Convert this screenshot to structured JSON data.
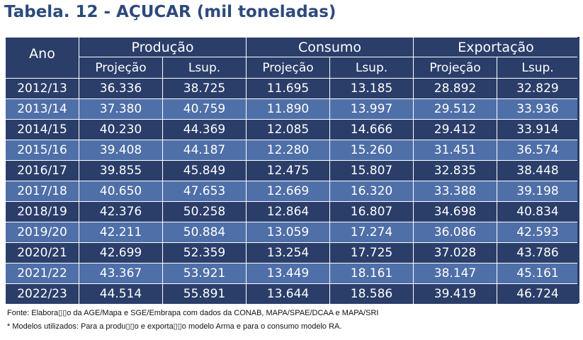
{
  "title": "Tabela. 12 - AÇUCAR (mil toneladas)",
  "header": {
    "ano": "Ano",
    "groups": [
      "Produção",
      "Consumo",
      "Exportação"
    ],
    "subcols": [
      "Projeção",
      "Lsup.",
      "Projeção",
      "Lsup.",
      "Projeção",
      "Lsup."
    ]
  },
  "rows": [
    [
      "2012/13",
      "36.336",
      "38.725",
      "11.695",
      "13.185",
      "28.892",
      "32.829"
    ],
    [
      "2013/14",
      "37.380",
      "40.759",
      "11.890",
      "13.997",
      "29.512",
      "33.936"
    ],
    [
      "2014/15",
      "40.230",
      "44.369",
      "12.085",
      "14.666",
      "29.412",
      "33.914"
    ],
    [
      "2015/16",
      "39.408",
      "44.187",
      "12.280",
      "15.260",
      "31.451",
      "36.574"
    ],
    [
      "2016/17",
      "39.855",
      "45.849",
      "12.475",
      "15.807",
      "32.835",
      "38.448"
    ],
    [
      "2017/18",
      "40.650",
      "47.653",
      "12.669",
      "16.320",
      "33.388",
      "39.198"
    ],
    [
      "2018/19",
      "42.376",
      "50.258",
      "12.864",
      "16.807",
      "34.698",
      "40.834"
    ],
    [
      "2019/20",
      "42.211",
      "50.884",
      "13.059",
      "17.274",
      "36.086",
      "42.593"
    ],
    [
      "2020/21",
      "42.699",
      "52.359",
      "13.254",
      "17.725",
      "37.028",
      "43.786"
    ],
    [
      "2021/22",
      "43.367",
      "53.921",
      "13.449",
      "18.161",
      "38.147",
      "45.161"
    ],
    [
      "2022/23",
      "44.514",
      "55.891",
      "13.644",
      "18.586",
      "39.419",
      "46.724"
    ]
  ],
  "notes": {
    "source": "Fonte: Elabora▯▯o da AGE/Mapa e SGE/Embrapa com dados da CONAB, MAPA/SPAE/DCAA e MAPA/SRI",
    "models": "* Modelos utilizados: Para a produ▯▯o e exporta▯▯o modelo Arma e para o consumo modelo RA."
  },
  "colors": {
    "title": "#2e4a7c",
    "header_bg": "#2b3e6a",
    "row_dark": "#2b3e6a",
    "row_light": "#4f6fa8"
  }
}
